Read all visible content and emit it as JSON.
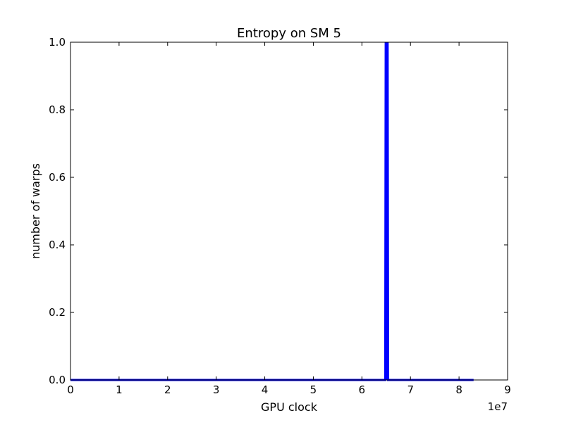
{
  "chart_data": {
    "type": "line",
    "title": "Entropy on SM 5",
    "xlabel": "GPU clock",
    "ylabel": "number of warps",
    "x_offset_label": "1e7",
    "xlim": [
      0,
      90000000
    ],
    "ylim": [
      0,
      1.0
    ],
    "x_tick_values": [
      0,
      10000000,
      20000000,
      30000000,
      40000000,
      50000000,
      60000000,
      70000000,
      80000000,
      90000000
    ],
    "x_tick_labels": [
      "0",
      "1",
      "2",
      "3",
      "4",
      "5",
      "6",
      "7",
      "8",
      "9"
    ],
    "y_tick_values": [
      0.0,
      0.2,
      0.4,
      0.6,
      0.8,
      1.0
    ],
    "y_tick_labels": [
      "0.0",
      "0.2",
      "0.4",
      "0.6",
      "0.8",
      "1.0"
    ],
    "grid": false,
    "series": [
      {
        "color": "#0000ff",
        "x": [
          0,
          64800000,
          64900000,
          65000000,
          65100000,
          65200000,
          65300000,
          65400000,
          83000000
        ],
        "y": [
          0,
          0,
          1.0,
          0,
          1.0,
          0,
          1.0,
          0,
          0
        ]
      }
    ]
  }
}
